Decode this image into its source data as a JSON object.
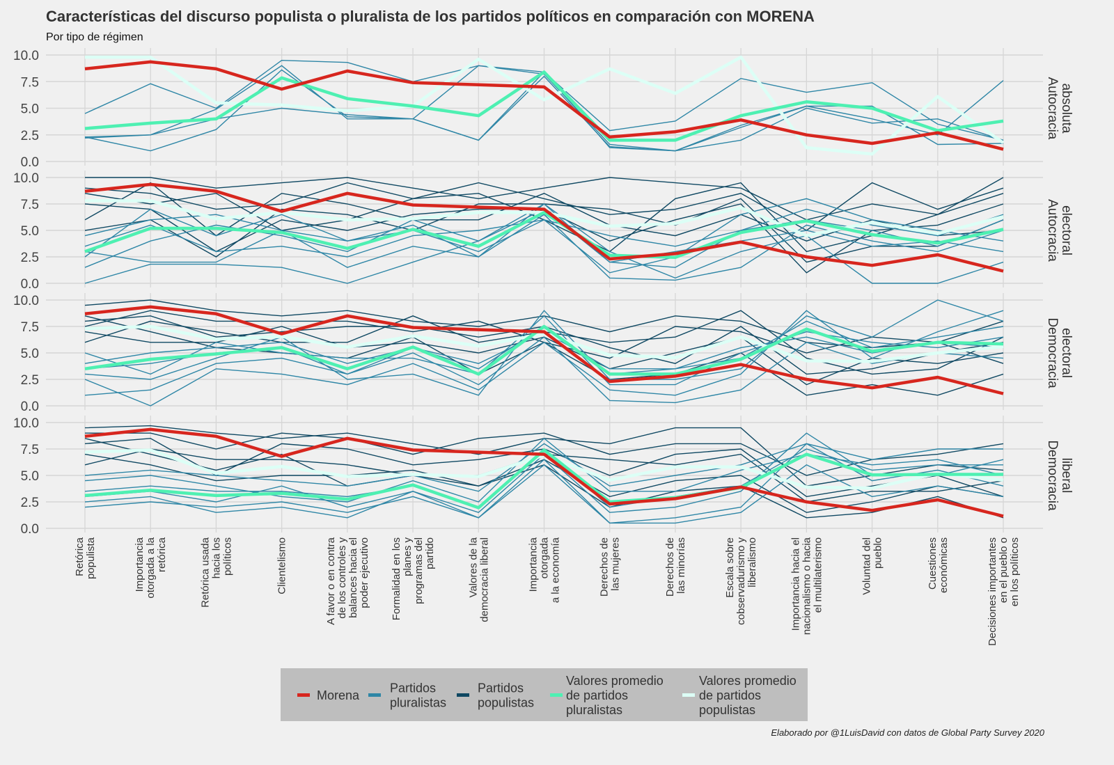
{
  "chart_data": {
    "type": "line",
    "title": "Características del discurso populista o pluralista de los partidos políticos en comparación con MORENA",
    "subtitle": "Por tipo de régimen",
    "caption": "Elaborado por @1LuisDavid con datos de Global Party Survey 2020",
    "ylim": [
      0,
      10
    ],
    "y_ticks": [
      "0.0",
      "2.5",
      "5.0",
      "7.5",
      "10.0"
    ],
    "grid": true,
    "legend_position": "bottom",
    "categories": [
      "Retórica\npopulista",
      "Importancia\notorgada a la\nretórica",
      "Retórica usada\nhacia los\npolíticos",
      "Clientelismo",
      "A favor o en contra\nde los controles y\nbalances hacia el\npoder ejecutivo",
      "Formalidad en los\nplanes y\nprogramas del\npartido",
      "Valores de la\ndemocracia liberal",
      "Importancia\notorgada\na la economía",
      "Derechos de\nlas mujeres",
      "Derechos de\nlas minorías",
      "Escala sobre\ncobservadurismo y\nliberalismo",
      "Importancia hacia el\nnacionalismo o hacia\nel multilaterismo",
      "Voluntad del\npueblo",
      "Cuestiones\neconómicas",
      "Decisiones importantes\nen el pueblo o\nen los políticos"
    ],
    "colors": {
      "morena": "#d7261e",
      "pluralistas": "#2e86a6",
      "populistas": "#0f4862",
      "promedio_pluralistas": "#4ef0b2",
      "promedio_populistas": "#dcfff6"
    },
    "legend": [
      {
        "key": "morena",
        "label": "Morena"
      },
      {
        "key": "pluralistas",
        "label": "Partidos\npluralistas"
      },
      {
        "key": "populistas",
        "label": "Partidos\npopulistas"
      },
      {
        "key": "promedio_pluralistas",
        "label": "Valores promedio\nde partidos\npluralistas"
      },
      {
        "key": "promedio_populistas",
        "label": "Valores promedio\nde partidos\npopulistas"
      }
    ],
    "morena": [
      8.7,
      9.35,
      8.7,
      6.8,
      8.5,
      7.4,
      7.2,
      7.0,
      2.3,
      2.8,
      3.9,
      2.5,
      1.7,
      2.7,
      1.15
    ],
    "panels": [
      {
        "label": "Autocracia\nabsoluta",
        "promedio_pluralistas": [
          3.1,
          3.6,
          4.0,
          7.85,
          5.9,
          5.2,
          4.3,
          8.4,
          2.0,
          2.0,
          4.3,
          5.6,
          5.0,
          2.9,
          3.8
        ],
        "promedio_populistas": [
          9.8,
          9.8,
          5.5,
          5.3,
          4.75,
          5.2,
          9.6,
          5.8,
          8.7,
          6.4,
          9.8,
          1.3,
          0.7,
          6.1,
          1.75
        ],
        "pluralistas": [
          [
            4.5,
            7.3,
            5.0,
            9.5,
            9.3,
            7.5,
            9.0,
            8.4,
            2.9,
            3.8,
            7.8,
            6.5,
            7.4,
            3.5,
            2.0
          ],
          [
            2.3,
            2.5,
            4.9,
            9.0,
            4.0,
            4.0,
            2.0,
            8.4,
            1.3,
            1.0,
            3.2,
            5.2,
            4.0,
            2.5,
            7.6
          ],
          [
            2.3,
            1.0,
            3.0,
            8.6,
            4.2,
            4.0,
            9.0,
            8.2,
            1.6,
            1.0,
            2.0,
            5.0,
            3.6,
            4.0,
            2.0
          ],
          [
            2.2,
            2.5,
            4.0,
            5.0,
            4.4,
            4.0,
            2.0,
            8.0,
            1.4,
            1.0,
            3.4,
            5.2,
            5.2,
            1.6,
            1.7
          ]
        ],
        "populistas": []
      },
      {
        "label": "Autocracia\nelectoral",
        "promedio_pluralistas": [
          3.0,
          5.2,
          5.2,
          4.8,
          3.3,
          5.1,
          3.5,
          6.7,
          2.65,
          2.45,
          4.8,
          5.9,
          4.6,
          3.8,
          5.1
        ],
        "promedio_populistas": [
          7.8,
          7.8,
          6.1,
          6.7,
          6.0,
          6.1,
          6.7,
          6.7,
          5.4,
          5.65,
          7.15,
          4.5,
          5.75,
          4.7,
          6.3
        ],
        "pluralistas": [
          [
            3.0,
            2.0,
            2.0,
            5.0,
            1.5,
            3.5,
            2.5,
            6.5,
            0.5,
            0.3,
            1.5,
            5.5,
            4.0,
            3.0,
            5.0
          ],
          [
            1.5,
            4.0,
            5.5,
            4.5,
            3.0,
            6.0,
            4.0,
            7.0,
            2.0,
            1.5,
            5.0,
            7.0,
            5.5,
            4.5,
            6.5
          ],
          [
            4.5,
            6.0,
            6.5,
            5.0,
            4.0,
            5.0,
            3.0,
            6.0,
            1.0,
            2.5,
            6.5,
            8.0,
            6.0,
            5.0,
            4.0
          ],
          [
            0.0,
            1.8,
            1.8,
            1.5,
            0.0,
            2.0,
            4.0,
            7.5,
            3.0,
            0.5,
            3.0,
            4.5,
            0.0,
            0.0,
            2.0
          ],
          [
            3.5,
            5.5,
            3.0,
            3.5,
            2.5,
            4.5,
            5.0,
            6.0,
            4.5,
            3.5,
            5.0,
            6.0,
            5.0,
            3.5,
            6.0
          ],
          [
            2.5,
            7.0,
            4.5,
            6.5,
            4.0,
            5.5,
            2.5,
            7.5,
            2.0,
            3.0,
            4.0,
            5.0,
            3.5,
            4.0,
            3.0
          ]
        ],
        "populistas": [
          [
            10,
            10,
            9.0,
            9.5,
            10,
            9.0,
            8.0,
            9.0,
            10,
            9.5,
            9.0,
            6.0,
            7.5,
            6.5,
            10
          ],
          [
            9.0,
            8.5,
            7.0,
            7.5,
            9.5,
            8.0,
            9.5,
            8.0,
            6.5,
            7.0,
            8.5,
            5.0,
            9.5,
            7.0,
            9.0
          ],
          [
            7.5,
            7.0,
            3.0,
            6.0,
            5.0,
            6.5,
            7.0,
            7.0,
            4.0,
            6.0,
            7.5,
            1.0,
            5.0,
            5.5,
            7.5
          ],
          [
            6.0,
            9.5,
            4.5,
            8.5,
            7.5,
            6.0,
            6.0,
            8.5,
            5.5,
            4.5,
            6.5,
            4.0,
            6.0,
            4.5,
            5.0
          ],
          [
            8.5,
            7.5,
            8.5,
            5.0,
            6.0,
            8.0,
            8.5,
            6.0,
            3.0,
            8.0,
            9.5,
            3.0,
            4.5,
            6.5,
            8.5
          ],
          [
            5.0,
            6.0,
            2.5,
            7.0,
            6.5,
            5.0,
            7.5,
            7.5,
            7.0,
            5.5,
            8.0,
            2.0,
            3.5,
            3.5,
            6.0
          ]
        ]
      },
      {
        "label": "Democracia\nelectoral",
        "promedio_pluralistas": [
          3.5,
          4.4,
          4.9,
          5.5,
          3.5,
          5.55,
          3.0,
          7.5,
          3.0,
          3.0,
          4.4,
          7.25,
          5.15,
          6.0,
          5.85
        ],
        "promedio_populistas": [
          7.3,
          7.5,
          6.3,
          6.55,
          5.55,
          6.6,
          5.65,
          6.8,
          4.8,
          4.55,
          6.5,
          4.25,
          4.2,
          5.0,
          5.6
        ],
        "pluralistas": [
          [
            1.0,
            1.5,
            4.0,
            4.5,
            3.0,
            5.0,
            2.0,
            6.5,
            0.5,
            0.3,
            1.5,
            6.0,
            4.0,
            5.0,
            4.5
          ],
          [
            3.5,
            4.0,
            5.0,
            5.5,
            3.0,
            5.5,
            3.5,
            7.5,
            3.0,
            3.5,
            4.5,
            8.0,
            5.5,
            6.5,
            7.5
          ],
          [
            5.0,
            3.0,
            6.0,
            5.0,
            4.5,
            4.5,
            3.0,
            8.5,
            2.0,
            2.0,
            5.0,
            7.0,
            6.0,
            5.5,
            6.5
          ],
          [
            2.5,
            0.0,
            3.5,
            3.0,
            2.0,
            4.0,
            1.5,
            6.0,
            1.5,
            1.0,
            3.0,
            9.0,
            4.5,
            7.0,
            9.0
          ],
          [
            4.0,
            5.0,
            5.5,
            6.0,
            4.0,
            5.5,
            4.0,
            7.0,
            3.5,
            3.5,
            5.5,
            6.5,
            5.0,
            6.0,
            5.5
          ],
          [
            3.0,
            2.5,
            4.5,
            6.5,
            2.5,
            3.0,
            1.0,
            9.0,
            2.5,
            2.5,
            3.5,
            8.5,
            6.5,
            10.0,
            8.0
          ]
        ],
        "populistas": [
          [
            9.5,
            10,
            9.0,
            8.5,
            9.0,
            8.0,
            7.5,
            8.5,
            7.0,
            8.5,
            8.0,
            6.0,
            5.5,
            6.0,
            8.0
          ],
          [
            8.0,
            8.5,
            6.5,
            7.0,
            7.5,
            7.5,
            6.5,
            7.5,
            5.5,
            4.0,
            7.5,
            3.0,
            3.5,
            5.0,
            6.0
          ],
          [
            7.0,
            6.0,
            6.0,
            7.5,
            5.5,
            6.0,
            5.0,
            6.5,
            3.5,
            5.0,
            6.5,
            2.0,
            4.5,
            4.0,
            5.0
          ],
          [
            6.0,
            8.0,
            7.0,
            6.0,
            6.0,
            8.5,
            6.0,
            7.0,
            6.0,
            6.5,
            9.0,
            4.5,
            3.0,
            3.5,
            6.5
          ],
          [
            8.5,
            7.0,
            5.5,
            5.0,
            4.5,
            6.5,
            3.0,
            6.0,
            2.5,
            3.0,
            5.0,
            1.0,
            2.0,
            1.0,
            3.0
          ],
          [
            7.5,
            9.0,
            8.0,
            8.0,
            8.0,
            7.0,
            8.0,
            6.0,
            4.5,
            7.5,
            7.0,
            5.0,
            6.5,
            6.0,
            4.0
          ]
        ]
      },
      {
        "label": "Democracia\nliberal",
        "promedio_pluralistas": [
          3.1,
          3.6,
          3.1,
          3.3,
          2.75,
          4.1,
          1.95,
          7.4,
          2.5,
          2.9,
          3.85,
          7.0,
          5.05,
          5.1,
          5.1
        ],
        "promedio_populistas": [
          7.2,
          7.4,
          5.2,
          5.85,
          4.9,
          5.1,
          4.9,
          6.9,
          4.55,
          5.8,
          5.8,
          3.9,
          3.8,
          5.2,
          4.55
        ],
        "pluralistas": [
          [
            2.0,
            2.5,
            2.0,
            2.5,
            1.5,
            3.0,
            1.0,
            6.0,
            0.5,
            1.0,
            2.0,
            8.0,
            4.5,
            5.5,
            4.0
          ],
          [
            3.5,
            4.0,
            3.5,
            3.5,
            3.0,
            4.0,
            2.0,
            7.5,
            2.0,
            3.0,
            4.0,
            7.5,
            5.5,
            6.0,
            6.0
          ],
          [
            4.5,
            5.0,
            4.0,
            3.0,
            2.5,
            4.5,
            2.5,
            8.5,
            3.5,
            3.5,
            5.5,
            7.0,
            6.0,
            6.5,
            5.0
          ],
          [
            2.5,
            3.0,
            1.5,
            2.0,
            1.0,
            3.5,
            1.0,
            6.5,
            0.5,
            0.5,
            1.5,
            6.0,
            3.0,
            4.0,
            3.0
          ],
          [
            5.0,
            5.5,
            5.0,
            4.5,
            4.0,
            5.0,
            3.5,
            8.0,
            4.0,
            5.0,
            6.0,
            8.0,
            6.5,
            7.5,
            7.5
          ],
          [
            3.0,
            3.5,
            2.5,
            4.0,
            2.0,
            3.5,
            1.5,
            7.0,
            1.5,
            2.0,
            3.5,
            9.0,
            5.0,
            5.0,
            6.5
          ]
        ],
        "populistas": [
          [
            9.5,
            9.7,
            9.0,
            8.5,
            9.0,
            8.0,
            7.0,
            8.5,
            8.0,
            9.5,
            9.5,
            4.0,
            5.0,
            6.0,
            5.5
          ],
          [
            8.0,
            8.5,
            5.0,
            8.0,
            7.5,
            6.0,
            6.5,
            7.5,
            5.0,
            7.0,
            7.5,
            3.0,
            4.0,
            5.0,
            3.0
          ],
          [
            7.0,
            6.0,
            4.5,
            5.0,
            5.0,
            5.5,
            4.0,
            6.5,
            3.0,
            4.5,
            5.0,
            1.5,
            2.5,
            4.0,
            3.0
          ],
          [
            6.0,
            7.5,
            6.5,
            6.5,
            6.0,
            5.0,
            5.0,
            7.0,
            6.5,
            6.0,
            7.0,
            2.5,
            3.5,
            3.5,
            4.5
          ],
          [
            8.5,
            7.0,
            5.5,
            7.0,
            4.0,
            5.0,
            4.0,
            6.0,
            2.0,
            3.5,
            4.0,
            1.0,
            1.5,
            3.0,
            1.0
          ],
          [
            9.0,
            9.0,
            7.5,
            9.0,
            8.5,
            7.0,
            8.5,
            9.0,
            7.0,
            8.0,
            8.0,
            5.0,
            6.5,
            7.0,
            8.0
          ]
        ]
      }
    ]
  }
}
